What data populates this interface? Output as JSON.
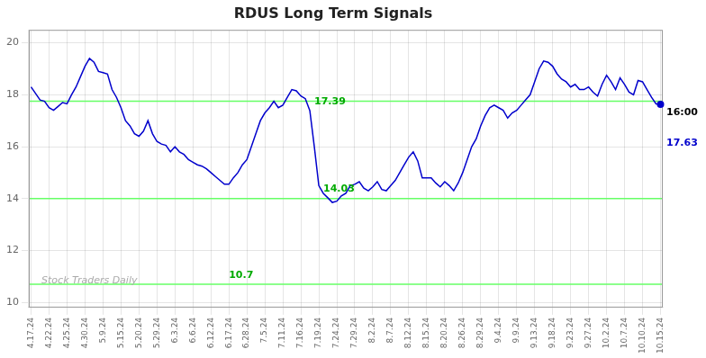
{
  "chart_data": {
    "type": "line",
    "title": "RDUS Long Term Signals",
    "categories": [
      "4.17.24",
      null,
      null,
      null,
      "4.22.24",
      null,
      null,
      null,
      "4.25.24",
      null,
      null,
      null,
      "4.30.24",
      null,
      null,
      null,
      "5.9.24",
      null,
      null,
      null,
      "5.15.24",
      null,
      null,
      null,
      "5.20.24",
      null,
      null,
      null,
      "5.29.24",
      null,
      null,
      null,
      "6.3.24",
      null,
      null,
      null,
      "6.6.24",
      null,
      null,
      null,
      "6.12.24",
      null,
      null,
      null,
      "6.17.24",
      null,
      null,
      null,
      "6.28.24",
      null,
      null,
      null,
      "7.5.24",
      null,
      null,
      null,
      "7.11.24",
      null,
      null,
      null,
      "7.16.24",
      null,
      null,
      null,
      "7.19.24",
      null,
      null,
      null,
      "7.24.24",
      null,
      null,
      null,
      "7.29.24",
      null,
      null,
      null,
      "8.2.24",
      null,
      null,
      null,
      "8.7.24",
      null,
      null,
      null,
      "8.12.24",
      null,
      null,
      null,
      "8.15.24",
      null,
      null,
      null,
      "8.20.24",
      null,
      null,
      null,
      "8.26.24",
      null,
      null,
      null,
      "8.29.24",
      null,
      null,
      null,
      "9.4.24",
      null,
      null,
      null,
      "9.9.24",
      null,
      null,
      null,
      "9.13.24",
      null,
      null,
      null,
      "9.18.24",
      null,
      null,
      null,
      "9.23.24",
      null,
      null,
      null,
      "9.27.24",
      null,
      null,
      null,
      "10.2.24",
      null,
      null,
      null,
      "10.7.24",
      null,
      null,
      null,
      "10.10.24",
      null,
      null,
      null,
      "10.15.24"
    ],
    "values": [
      18.3,
      18.05,
      17.8,
      17.75,
      17.5,
      17.4,
      17.55,
      17.7,
      17.65,
      18.0,
      18.3,
      18.7,
      19.1,
      19.4,
      19.25,
      18.9,
      18.85,
      18.8,
      18.2,
      17.9,
      17.5,
      17.0,
      16.8,
      16.5,
      16.4,
      16.6,
      17.0,
      16.5,
      16.2,
      16.1,
      16.05,
      15.8,
      16.0,
      15.8,
      15.7,
      15.5,
      15.4,
      15.3,
      15.25,
      15.15,
      15.0,
      14.85,
      14.7,
      14.55,
      14.55,
      14.8,
      15.0,
      15.3,
      15.5,
      16.0,
      16.5,
      17.0,
      17.3,
      17.5,
      17.75,
      17.5,
      17.6,
      17.9,
      18.2,
      18.15,
      17.95,
      17.85,
      17.39,
      16.0,
      14.5,
      14.2,
      14.03,
      13.85,
      13.9,
      14.1,
      14.2,
      14.5,
      14.55,
      14.65,
      14.4,
      14.3,
      14.45,
      14.65,
      14.35,
      14.3,
      14.5,
      14.7,
      15.0,
      15.3,
      15.6,
      15.8,
      15.45,
      14.8,
      14.8,
      14.8,
      14.6,
      14.45,
      14.65,
      14.5,
      14.3,
      14.6,
      15.0,
      15.5,
      16.0,
      16.3,
      16.8,
      17.2,
      17.5,
      17.6,
      17.5,
      17.4,
      17.1,
      17.3,
      17.4,
      17.6,
      17.8,
      18.0,
      18.5,
      19.0,
      19.3,
      19.25,
      19.1,
      18.8,
      18.6,
      18.5,
      18.3,
      18.4,
      18.2,
      18.2,
      18.3,
      18.1,
      17.95,
      18.4,
      18.75,
      18.5,
      18.2,
      18.65,
      18.4,
      18.1,
      18.0,
      18.55,
      18.5,
      18.2,
      17.9,
      17.65,
      17.63
    ],
    "color": "#0000cc",
    "ylim": [
      9.8,
      20.5
    ],
    "yticks": [
      10,
      12,
      14,
      16,
      18,
      20
    ],
    "grid": true,
    "hlines": [
      {
        "value": 17.75,
        "color": "#66ff66"
      },
      {
        "value": 14.0,
        "color": "#66ff66"
      },
      {
        "value": 10.7,
        "color": "#66ff66"
      }
    ],
    "annotations": [
      {
        "text": "17.39",
        "x": 62,
        "y": 17.39,
        "color": "#00aa00"
      },
      {
        "text": "14.03",
        "x": 64,
        "y": 14.03,
        "color": "#00aa00"
      },
      {
        "text": "10.7",
        "x": 44,
        "y": 10.7,
        "color": "#00aa00"
      }
    ],
    "watermark": "Stock Traders Daily",
    "end_label": {
      "time": "16:00",
      "text": "17.63",
      "value": 17.63
    }
  }
}
